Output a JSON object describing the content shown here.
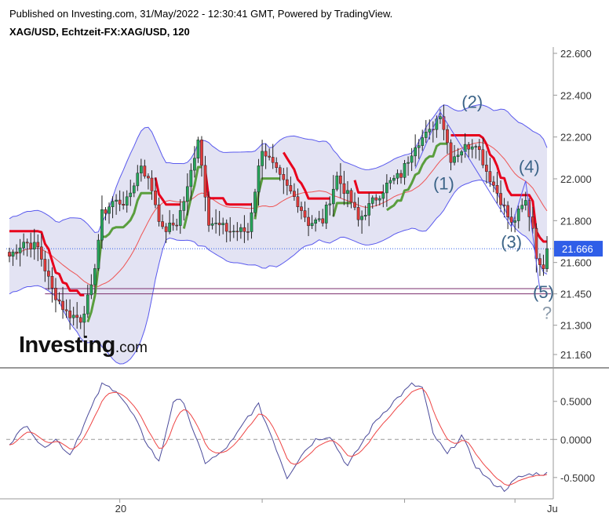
{
  "header": {
    "published": "Published on Investing.com, 31/May/2022 - 12:30:41 GMT, Powered by TradingView.",
    "symbol": "XAG/USD, Echtzeit-FX:XAG/USD, 120"
  },
  "watermark": {
    "text": "Investing",
    "suffix": ".com"
  },
  "colors": {
    "up": "#26a65b",
    "down": "#e23b3b",
    "band_fill": "#e3e3f3",
    "band_line": "#5a5aee",
    "band_mid": "#ee5555",
    "trend_up": "#5a9e3e",
    "trend_down": "#e8001c",
    "osc_fast": "#4b4b9b",
    "osc_slow": "#ee4444",
    "price_tag": "#2f5ee8",
    "support": "#7b2f6e",
    "wave_label": "#3c6488"
  },
  "chart_data": {
    "type": "candlestick",
    "title": "XAG/USD, Echtzeit-FX:XAG/USD, 120",
    "y_ticks": [
      "22.600",
      "22.400",
      "22.200",
      "22.000",
      "21.800",
      "21.600",
      "21.450",
      "21.300",
      "21.160"
    ],
    "y_tick_values": [
      22.6,
      22.4,
      22.2,
      22.0,
      21.8,
      21.6,
      21.45,
      21.3,
      21.16
    ],
    "ylim": [
      21.1,
      22.63
    ],
    "x_ticks": [
      "20",
      "Ju"
    ],
    "x_tick_bar_index": [
      31,
      151
    ],
    "last_price": "21.666",
    "last_price_value": 21.666,
    "support_levels": [
      21.475,
      21.45
    ],
    "wave_labels": [
      {
        "text": "(1)",
        "bar": 122,
        "price": 21.95
      },
      {
        "text": "(2)",
        "bar": 130,
        "price": 22.34
      },
      {
        "text": "(3)",
        "bar": 141,
        "price": 21.67
      },
      {
        "text": "(4)",
        "bar": 146,
        "price": 22.03
      },
      {
        "text": "(5)",
        "bar": 150,
        "price": 21.43
      },
      {
        "text": "?",
        "bar": 151,
        "price": 21.33
      }
    ],
    "bar_count": 152,
    "anchors": [
      [
        0,
        21.63
      ],
      [
        4,
        21.7
      ],
      [
        8,
        21.67
      ],
      [
        12,
        21.47
      ],
      [
        16,
        21.36
      ],
      [
        20,
        21.33
      ],
      [
        23,
        21.47
      ],
      [
        26,
        21.83
      ],
      [
        29,
        21.89
      ],
      [
        33,
        21.89
      ],
      [
        37,
        22.07
      ],
      [
        40,
        21.95
      ],
      [
        43,
        21.75
      ],
      [
        47,
        21.79
      ],
      [
        50,
        21.95
      ],
      [
        53,
        22.2
      ],
      [
        56,
        21.8
      ],
      [
        58,
        21.78
      ],
      [
        62,
        21.75
      ],
      [
        67,
        21.75
      ],
      [
        71,
        22.15
      ],
      [
        76,
        22.0
      ],
      [
        81,
        21.89
      ],
      [
        84,
        21.79
      ],
      [
        88,
        21.8
      ],
      [
        92,
        22.01
      ],
      [
        96,
        21.89
      ],
      [
        98,
        21.8
      ],
      [
        102,
        21.89
      ],
      [
        106,
        21.97
      ],
      [
        110,
        22.02
      ],
      [
        114,
        22.17
      ],
      [
        118,
        22.22
      ],
      [
        121,
        22.32
      ],
      [
        124,
        22.1
      ],
      [
        127,
        22.14
      ],
      [
        131,
        22.18
      ],
      [
        134,
        22.04
      ],
      [
        138,
        21.9
      ],
      [
        141,
        21.78
      ],
      [
        145,
        21.89
      ],
      [
        147,
        21.77
      ],
      [
        148,
        21.64
      ],
      [
        149,
        21.57
      ],
      [
        150,
        21.666
      ]
    ],
    "band_width": 0.3,
    "oscillator": {
      "y_ticks": [
        "0.5000",
        "0.0000",
        "-0.5000"
      ],
      "y_tick_values": [
        0.5,
        0.0,
        -0.5
      ],
      "ylim": [
        -0.78,
        0.93
      ],
      "anchors": [
        [
          0,
          -0.05
        ],
        [
          5,
          0.2
        ],
        [
          9,
          -0.1
        ],
        [
          13,
          0.0
        ],
        [
          17,
          -0.2
        ],
        [
          21,
          0.2
        ],
        [
          26,
          0.72
        ],
        [
          30,
          0.65
        ],
        [
          35,
          0.3
        ],
        [
          38,
          0.0
        ],
        [
          42,
          -0.3
        ],
        [
          46,
          0.5
        ],
        [
          49,
          0.5
        ],
        [
          52,
          0.05
        ],
        [
          55,
          -0.3
        ],
        [
          59,
          -0.2
        ],
        [
          63,
          0.0
        ],
        [
          67,
          0.3
        ],
        [
          70,
          0.45
        ],
        [
          74,
          0.0
        ],
        [
          78,
          -0.5
        ],
        [
          82,
          -0.2
        ],
        [
          86,
          0.0
        ],
        [
          90,
          0.05
        ],
        [
          95,
          -0.35
        ],
        [
          99,
          -0.05
        ],
        [
          103,
          0.25
        ],
        [
          108,
          0.5
        ],
        [
          113,
          0.72
        ],
        [
          116,
          0.68
        ],
        [
          119,
          0.07
        ],
        [
          123,
          -0.2
        ],
        [
          127,
          0.05
        ],
        [
          131,
          -0.35
        ],
        [
          135,
          -0.55
        ],
        [
          139,
          -0.66
        ],
        [
          143,
          -0.5
        ],
        [
          147,
          -0.45
        ]
      ]
    }
  }
}
